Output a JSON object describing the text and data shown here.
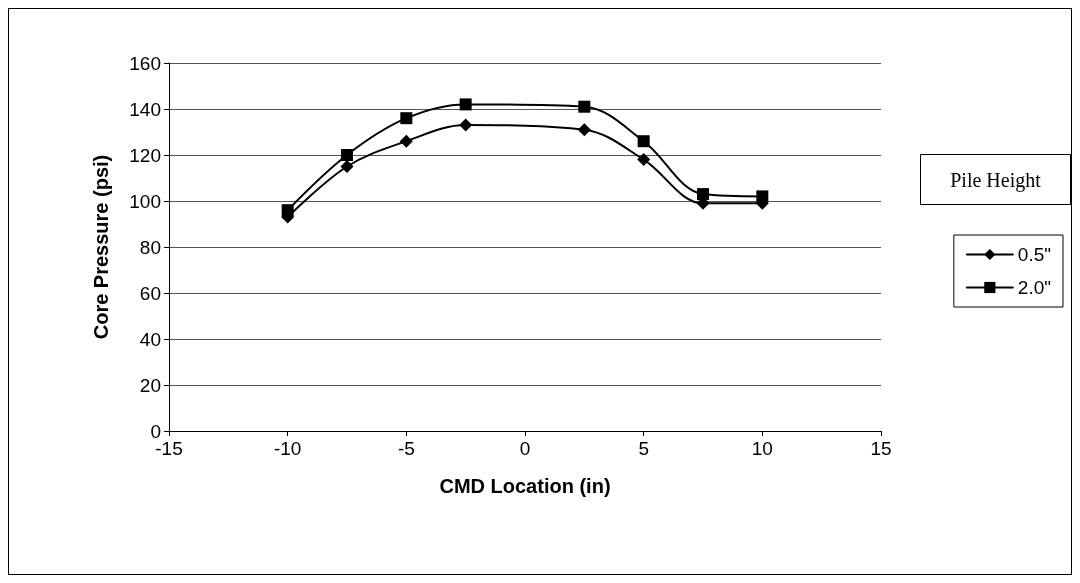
{
  "chart_data": {
    "type": "line",
    "xlabel": "CMD Location (in)",
    "ylabel": "Core Pressure (psi)",
    "legend_title": "Pile Height",
    "x": [
      -10,
      -7.5,
      -5,
      -2.5,
      2.5,
      5,
      7.5,
      10
    ],
    "series": [
      {
        "name": "0.5\"",
        "color": "#000000",
        "marker": "diamond",
        "values": [
          93,
          115,
          126,
          133,
          131,
          118,
          99,
          99
        ]
      },
      {
        "name": "2.0\"",
        "color": "#000000",
        "marker": "square",
        "values": [
          96,
          120,
          136,
          142,
          141,
          126,
          103,
          102
        ]
      }
    ],
    "xlim": [
      -15,
      15
    ],
    "xticks": [
      -15,
      -10,
      -5,
      0,
      5,
      10,
      15
    ],
    "ylim": [
      0,
      160
    ],
    "yticks": [
      0,
      20,
      40,
      60,
      80,
      100,
      120,
      140,
      160
    ],
    "grid": "y",
    "legend": "right",
    "line_style": "solid"
  }
}
